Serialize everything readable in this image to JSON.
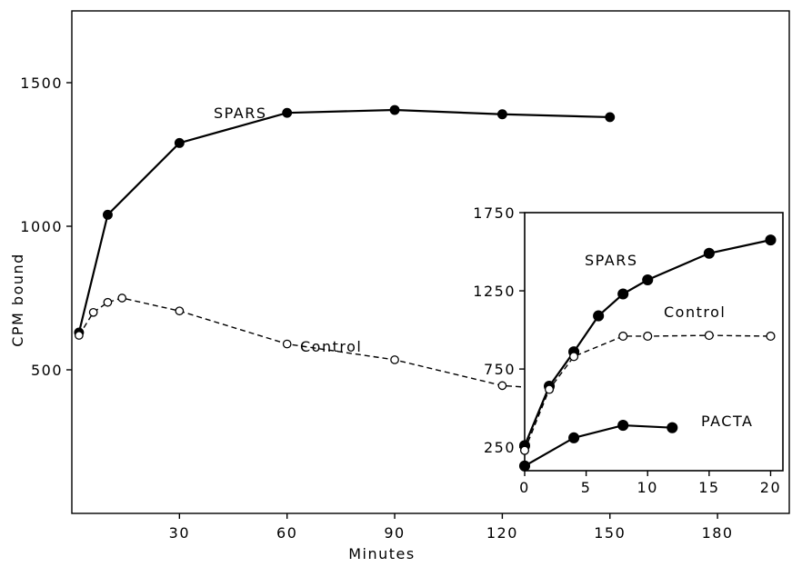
{
  "chart_data": [
    {
      "type": "line",
      "xlabel": "Minutes",
      "ylabel": "CPM bound",
      "xlim": [
        0,
        200
      ],
      "ylim": [
        0,
        1750
      ],
      "x_ticks": [
        30,
        60,
        90,
        120,
        150,
        180
      ],
      "y_ticks": [
        500,
        1000,
        1500
      ],
      "series": [
        {
          "name": "SPARS",
          "style": "solid",
          "marker": "filled",
          "x": [
            2,
            10,
            30,
            60,
            90,
            120,
            150
          ],
          "y": [
            630,
            1040,
            1290,
            1395,
            1405,
            1390,
            1380
          ]
        },
        {
          "name": "Control",
          "style": "dashed",
          "marker": "open",
          "x": [
            2,
            6,
            10,
            14,
            30,
            60,
            90,
            120,
            150
          ],
          "y": [
            620,
            700,
            735,
            750,
            705,
            590,
            535,
            445,
            420
          ]
        }
      ]
    },
    {
      "type": "line",
      "xlim": [
        0,
        21
      ],
      "ylim": [
        100,
        1750
      ],
      "x_ticks": [
        0,
        5,
        10,
        15,
        20
      ],
      "y_ticks": [
        250,
        750,
        1250,
        1750
      ],
      "series": [
        {
          "name": "SPARS",
          "style": "solid",
          "marker": "filled",
          "x": [
            0,
            2,
            4,
            6,
            8,
            10,
            15,
            20
          ],
          "y": [
            260,
            640,
            860,
            1090,
            1230,
            1320,
            1490,
            1575
          ]
        },
        {
          "name": "Control",
          "style": "dashed",
          "marker": "open",
          "x": [
            0,
            2,
            4,
            8,
            10,
            15,
            20
          ],
          "y": [
            230,
            620,
            830,
            960,
            960,
            965,
            960
          ]
        },
        {
          "name": "PACTA",
          "style": "solid",
          "marker": "filled",
          "x": [
            0,
            4,
            8,
            12
          ],
          "y": [
            130,
            310,
            390,
            375
          ]
        }
      ]
    }
  ]
}
